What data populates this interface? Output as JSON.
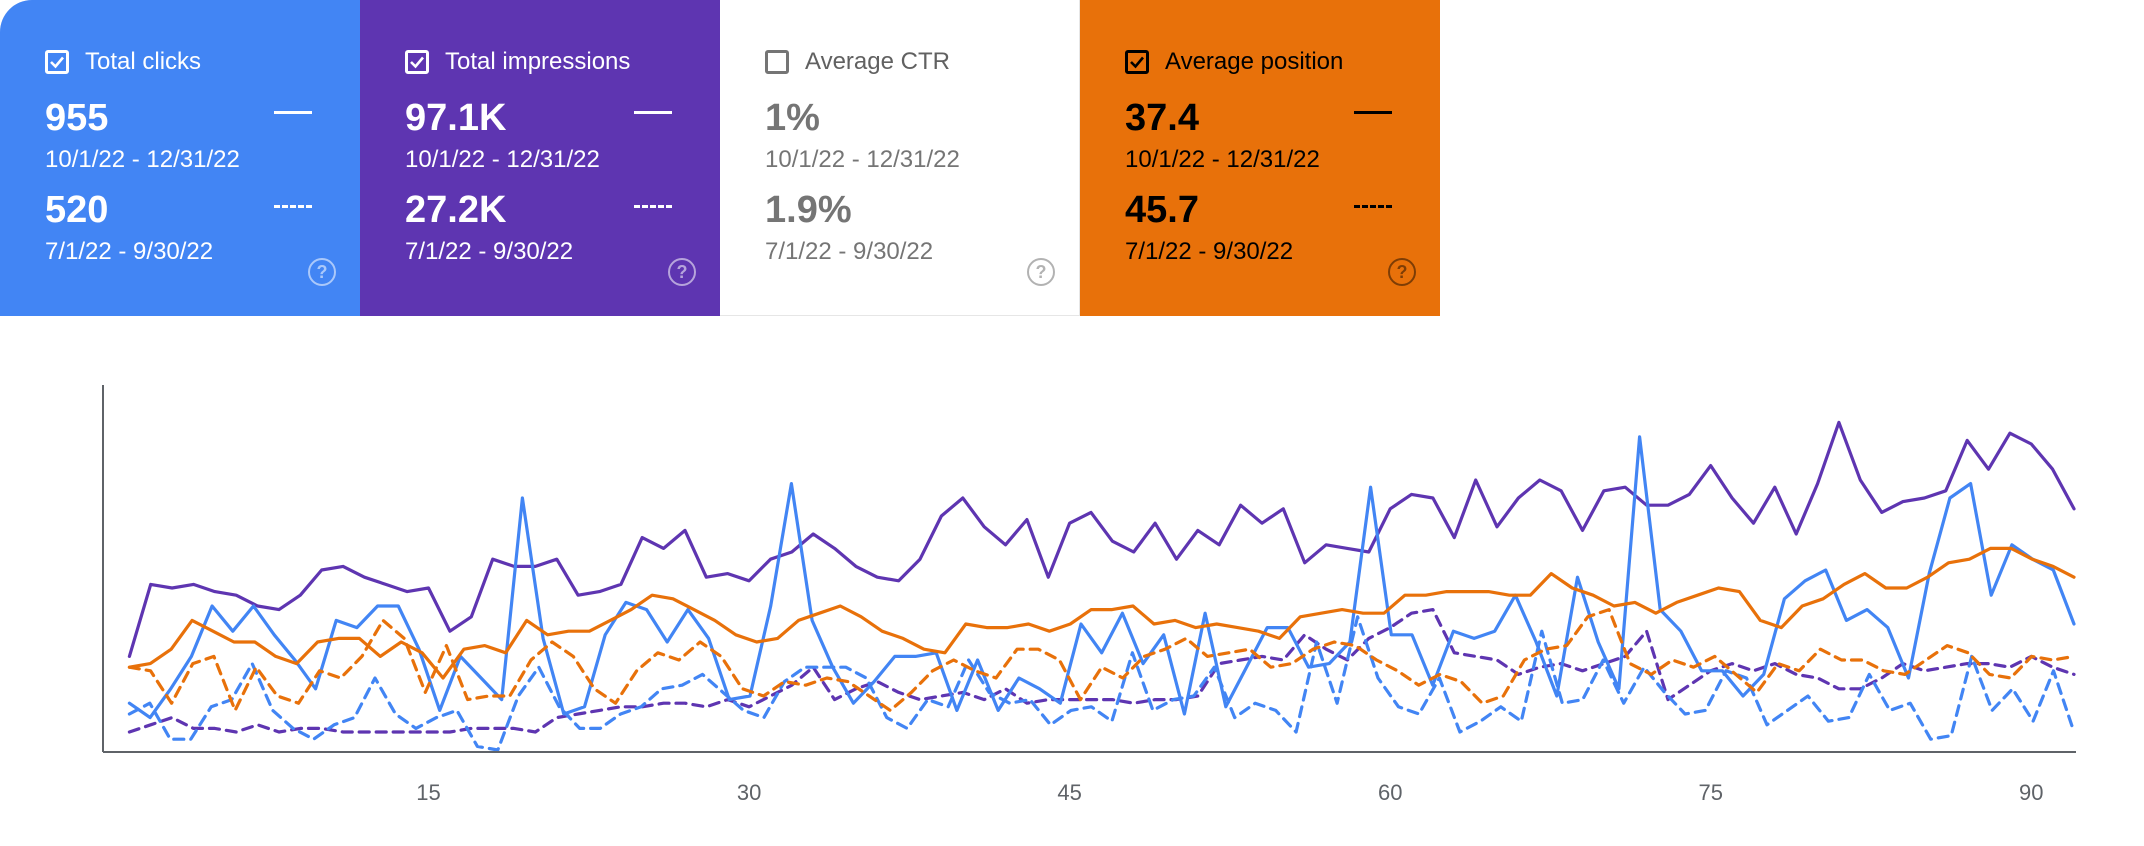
{
  "metrics": {
    "clicks": {
      "label": "Total clicks",
      "checked": true,
      "color": "#4285f4",
      "current": "955",
      "current_range": "10/1/22 - 12/31/22",
      "previous": "520",
      "previous_range": "7/1/22 - 9/30/22",
      "help_icon": "?"
    },
    "impressions": {
      "label": "Total impressions",
      "checked": true,
      "color": "#5e35b1",
      "current": "97.1K",
      "current_range": "10/1/22 - 12/31/22",
      "previous": "27.2K",
      "previous_range": "7/1/22 - 9/30/22",
      "help_icon": "?"
    },
    "ctr": {
      "label": "Average CTR",
      "checked": false,
      "color": "#ffffff",
      "current": "1%",
      "current_range": "10/1/22 - 12/31/22",
      "previous": "1.9%",
      "previous_range": "7/1/22 - 9/30/22",
      "help_icon": "?"
    },
    "position": {
      "label": "Average position",
      "checked": true,
      "color": "#e8710a",
      "current": "37.4",
      "current_range": "10/1/22 - 12/31/22",
      "previous": "45.7",
      "previous_range": "7/1/22 - 9/30/22",
      "help_icon": "?"
    }
  },
  "chart_data": {
    "type": "line",
    "x_ticks": [
      15,
      30,
      45,
      60,
      75,
      90
    ],
    "xlim": [
      0,
      92
    ],
    "ylim": [
      0,
      100
    ],
    "grid": false,
    "series": [
      {
        "color": "#5e35b1",
        "style": "solid",
        "values": [
          26,
          46,
          45,
          46,
          44,
          43,
          40,
          39,
          43,
          50,
          51,
          48,
          46,
          44,
          45,
          33,
          37,
          53,
          51,
          51,
          53,
          43,
          44,
          46,
          59,
          56,
          61,
          48,
          49,
          47,
          53,
          55,
          60,
          56,
          51,
          48,
          47,
          53,
          65,
          70,
          62,
          57,
          64,
          48,
          63,
          66,
          58,
          55,
          63,
          53,
          61,
          57,
          68,
          63,
          67,
          52,
          57,
          56,
          55,
          67,
          71,
          70,
          59,
          75,
          62,
          70,
          75,
          72,
          61,
          72,
          73,
          68,
          68,
          71,
          79,
          70,
          63,
          73,
          60,
          74,
          91,
          75,
          66,
          69,
          70,
          72,
          86,
          78,
          88,
          85,
          78,
          67
        ]
      },
      {
        "color": "#5e35b1",
        "style": "dashed",
        "values": [
          5,
          7,
          9,
          6,
          6,
          5,
          7,
          5,
          6,
          6,
          5,
          5,
          5,
          5,
          5,
          5,
          6,
          6,
          6,
          5,
          9,
          10,
          11,
          12,
          12,
          13,
          13,
          12,
          14,
          12,
          15,
          18,
          23,
          14,
          17,
          19,
          16,
          14,
          15,
          16,
          14,
          17,
          13,
          14,
          14,
          14,
          14,
          13,
          14,
          14,
          15,
          24,
          25,
          26,
          25,
          32,
          28,
          25,
          31,
          34,
          38,
          39,
          27,
          26,
          25,
          21,
          23,
          24,
          22,
          24,
          26,
          33,
          14,
          18,
          22,
          24,
          22,
          24,
          21,
          20,
          17,
          17,
          20,
          24,
          22,
          23,
          24,
          24,
          23,
          26,
          23,
          21
        ]
      },
      {
        "color": "#4285f4",
        "style": "solid",
        "values": [
          13,
          9,
          17,
          26,
          40,
          33,
          40,
          32,
          25,
          17,
          36,
          34,
          40,
          40,
          28,
          11,
          26,
          20,
          14,
          70,
          31,
          10,
          12,
          32,
          41,
          39,
          30,
          39,
          31,
          14,
          15,
          40,
          74,
          36,
          23,
          13,
          19,
          26,
          26,
          27,
          11,
          25,
          11,
          20,
          17,
          13,
          35,
          27,
          38,
          24,
          32,
          10,
          38,
          12,
          23,
          34,
          34,
          23,
          24,
          30,
          73,
          32,
          32,
          18,
          33,
          31,
          33,
          43,
          30,
          15,
          48,
          30,
          17,
          87,
          39,
          33,
          22,
          22,
          15,
          21,
          42,
          47,
          50,
          36,
          39,
          34,
          20,
          49,
          70,
          74,
          43,
          57,
          53,
          50,
          35
        ]
      },
      {
        "color": "#4285f4",
        "style": "dashed",
        "values": [
          10,
          13,
          3,
          3,
          12,
          14,
          24,
          11,
          6,
          3,
          7,
          9,
          20,
          10,
          6,
          9,
          11,
          1,
          0,
          15,
          23,
          12,
          6,
          6,
          10,
          12,
          17,
          18,
          21,
          16,
          11,
          9,
          19,
          23,
          23,
          23,
          20,
          9,
          6,
          14,
          12,
          25,
          16,
          13,
          14,
          7,
          11,
          12,
          8,
          27,
          11,
          14,
          15,
          23,
          9,
          13,
          11,
          5,
          30,
          13,
          37,
          20,
          12,
          10,
          20,
          5,
          8,
          12,
          8,
          33,
          13,
          14,
          25,
          13,
          23,
          16,
          10,
          11,
          22,
          20,
          7,
          11,
          15,
          8,
          9,
          21,
          11,
          13,
          3,
          4,
          26,
          11,
          17,
          8,
          22,
          5
        ]
      },
      {
        "color": "#e8710a",
        "style": "solid",
        "values": [
          23,
          24,
          28,
          36,
          33,
          30,
          30,
          26,
          24,
          30,
          31,
          31,
          26,
          30,
          27,
          20,
          28,
          29,
          27,
          36,
          32,
          33,
          33,
          36,
          39,
          43,
          42,
          39,
          36,
          32,
          30,
          31,
          36,
          38,
          40,
          37,
          33,
          31,
          28,
          27,
          35,
          34,
          34,
          35,
          33,
          35,
          39,
          39,
          40,
          35,
          36,
          34,
          35,
          34,
          33,
          31,
          37,
          38,
          39,
          38,
          38,
          43,
          43,
          44,
          44,
          44,
          43,
          43,
          49,
          45,
          43,
          40,
          41,
          38,
          41,
          43,
          45,
          44,
          36,
          34,
          40,
          42,
          46,
          49,
          45,
          45,
          48,
          52,
          53,
          56,
          56,
          53,
          51,
          48
        ]
      },
      {
        "color": "#e8710a",
        "style": "dashed",
        "values": [
          23,
          22,
          13,
          24,
          26,
          11,
          23,
          15,
          13,
          22,
          20,
          26,
          36,
          31,
          16,
          29,
          14,
          15,
          15,
          25,
          30,
          26,
          17,
          13,
          22,
          27,
          25,
          30,
          26,
          17,
          15,
          19,
          18,
          20,
          19,
          15,
          11,
          16,
          22,
          25,
          22,
          20,
          28,
          28,
          25,
          14,
          23,
          20,
          26,
          28,
          31,
          26,
          27,
          28,
          23,
          24,
          28,
          30,
          29,
          25,
          22,
          18,
          21,
          19,
          13,
          15,
          25,
          28,
          29,
          37,
          39,
          24,
          21,
          25,
          23,
          26,
          21,
          16,
          24,
          22,
          28,
          25,
          25,
          22,
          21,
          25,
          29,
          27,
          21,
          20,
          26,
          25,
          26
        ]
      }
    ]
  }
}
